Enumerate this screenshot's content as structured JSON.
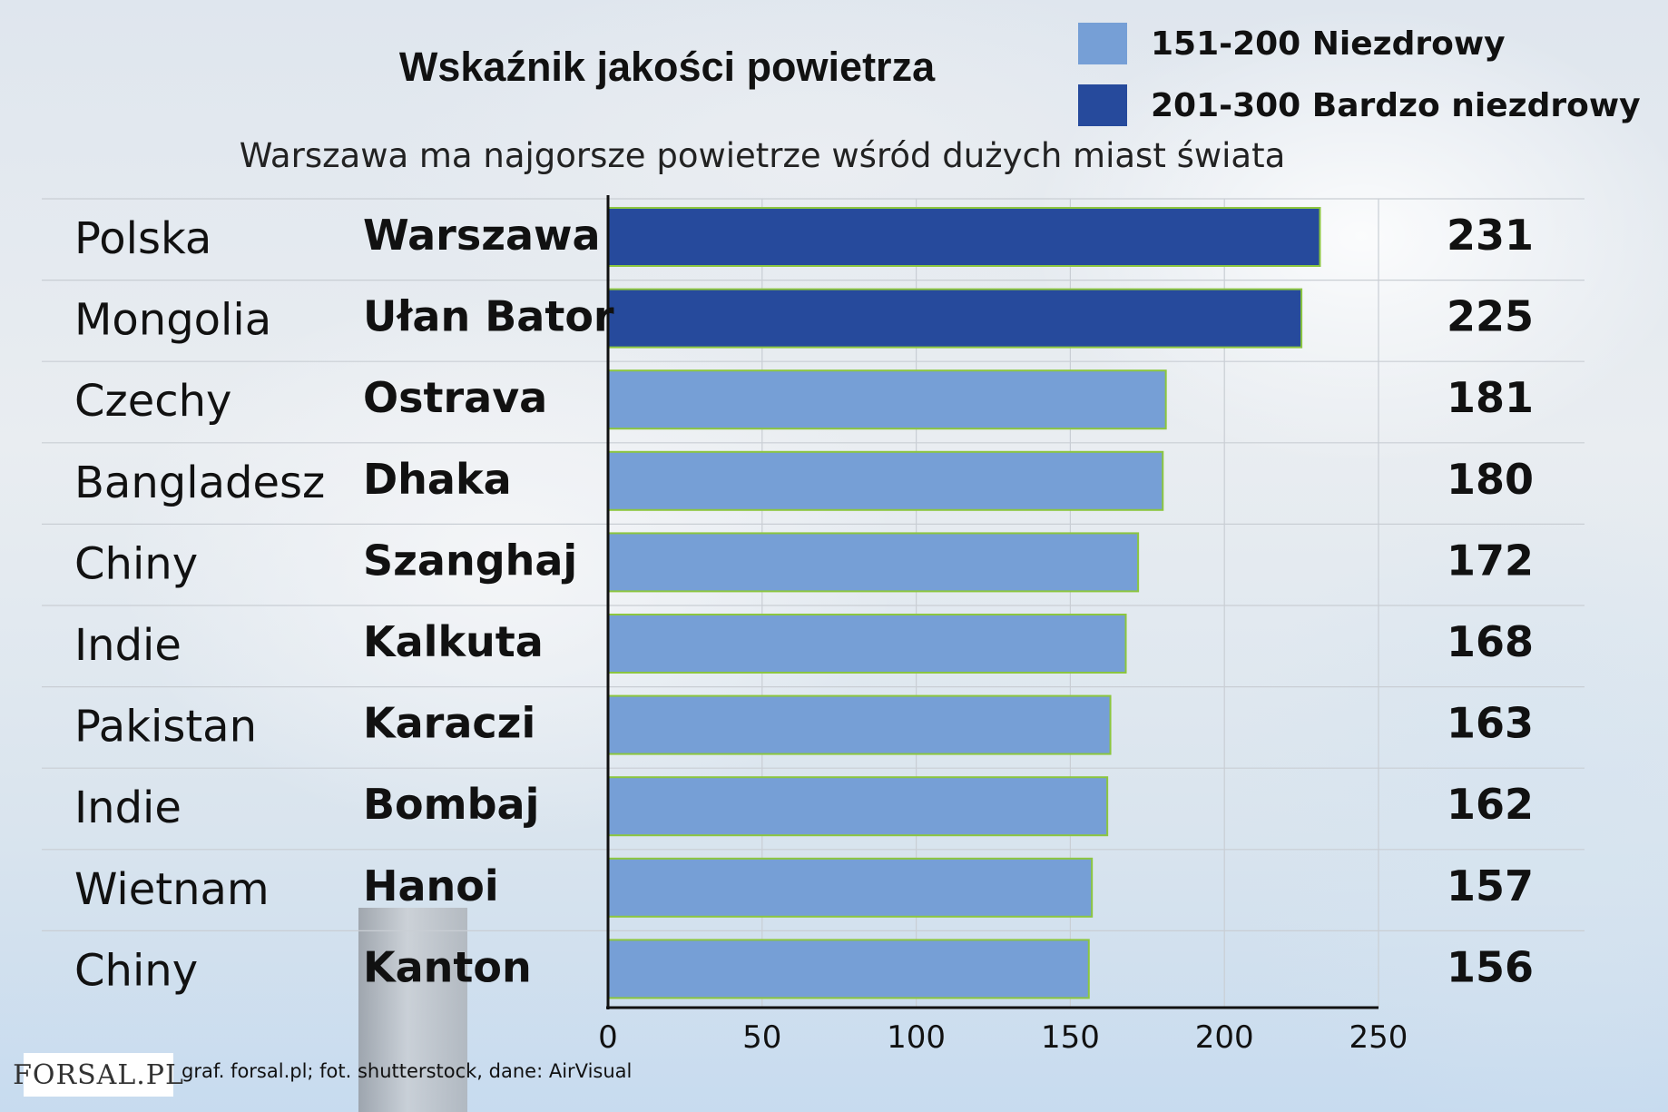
{
  "title": "Wskaźnik jakości powietrza",
  "subtitle": "Warszawa ma najgorsze powietrze wśród dużych miast świata",
  "legend": [
    {
      "label": "151-200 Niezdrowy",
      "color": "#769fd6"
    },
    {
      "label": "201-300 Bardzo niezdrowy",
      "color": "#264a9c"
    }
  ],
  "chart_data": {
    "type": "bar",
    "orientation": "horizontal",
    "countries": [
      "Polska",
      "Mongolia",
      "Czechy",
      "Bangladesz",
      "Chiny",
      "Indie",
      "Pakistan",
      "Indie",
      "Wietnam",
      "Chiny"
    ],
    "categories": [
      "Warszawa",
      "Ułan Bator",
      "Ostrava",
      "Dhaka",
      "Szanghaj",
      "Kalkuta",
      "Karaczi",
      "Bombaj",
      "Hanoi",
      "Kanton"
    ],
    "values": [
      231,
      225,
      181,
      180,
      172,
      168,
      163,
      162,
      157,
      156
    ],
    "value_labels": [
      "231",
      "225",
      "181",
      "180",
      "172",
      "168",
      "163",
      "162",
      "157",
      "156"
    ],
    "xlim": [
      0,
      250
    ],
    "xticks": [
      0,
      50,
      100,
      150,
      200,
      250
    ],
    "xtick_labels": [
      "0",
      "50",
      "100",
      "150",
      "200",
      "250"
    ],
    "grid": true,
    "colors": {
      "bardzo_niezdrowy": "#264a9c",
      "niezdrowy": "#769fd6",
      "bar_border": "#8cc63f"
    },
    "legend_position": "top-right"
  },
  "footer": {
    "logo_text": "FORSAL.PL",
    "source": "graf. forsal.pl; fot. shutterstock, dane: AirVisual"
  }
}
